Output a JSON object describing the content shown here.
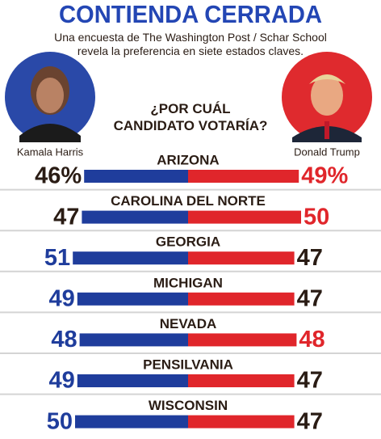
{
  "chart_data": {
    "type": "diverging-bar",
    "title": "CONTIENDA CERRADA",
    "subtitle": "Una encuesta de The Washington Post / Schar School revela la preferencia en siete estados claves.",
    "question": "¿POR CUÁL CANDIDATO VOTARÍA?",
    "categories": [
      "ARIZONA",
      "CAROLINA DEL NORTE",
      "GEORGIA",
      "MICHIGAN",
      "NEVADA",
      "PENSILVANIA",
      "WISCONSIN"
    ],
    "series": [
      {
        "name": "Kamala Harris",
        "color": "#1f3d9c",
        "values": [
          46,
          47,
          51,
          49,
          48,
          49,
          50
        ],
        "value_labels": [
          "46%",
          "47",
          "51",
          "49",
          "48",
          "49",
          "50"
        ]
      },
      {
        "name": "Donald Trump",
        "color": "#e0262b",
        "values": [
          49,
          50,
          47,
          47,
          48,
          47,
          47
        ],
        "value_labels": [
          "49%",
          "50",
          "47",
          "47",
          "48",
          "47",
          "47"
        ]
      }
    ]
  }
}
